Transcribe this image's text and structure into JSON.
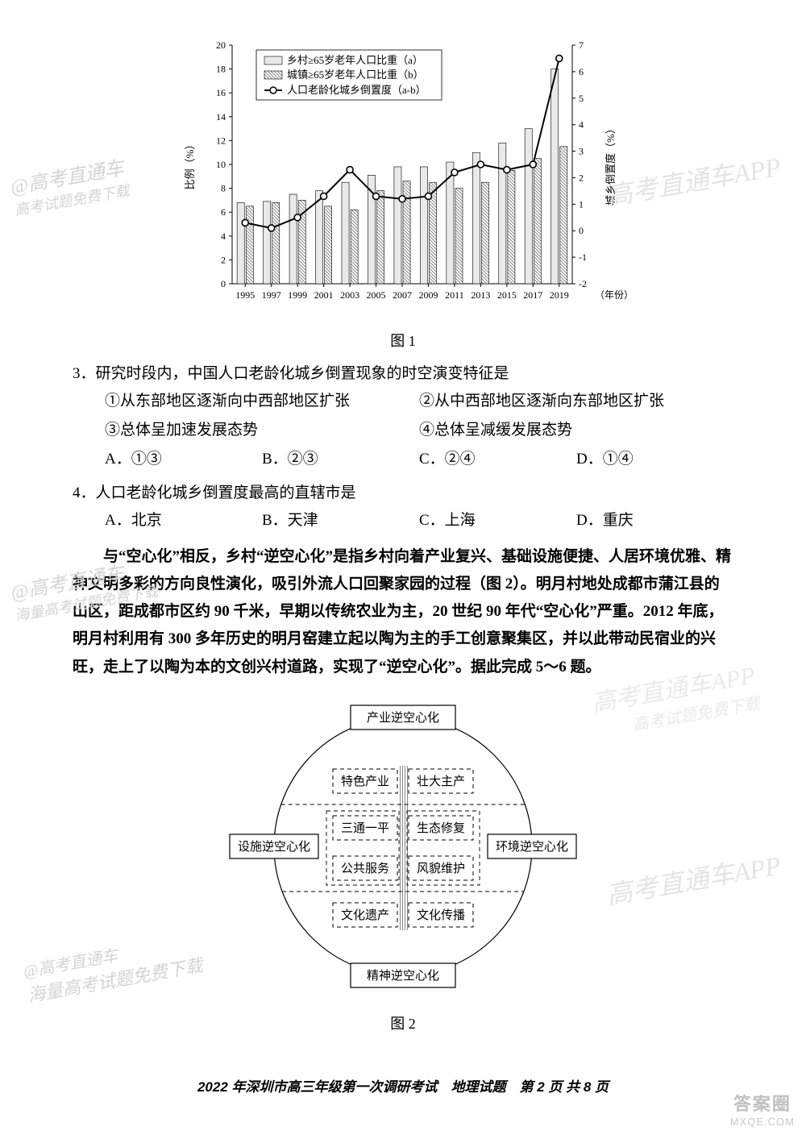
{
  "chart1": {
    "type": "bar+line",
    "legend": {
      "a": "乡村≥65岁老年人口比重（a）",
      "b": "城镇≥65岁老年人口比重（b）",
      "line": "人口老龄化城乡倒置度（a-b）"
    },
    "y_left_label": "比例（%）",
    "y_right_label": "城乡倒置度（%）",
    "y_left": {
      "min": 0,
      "max": 20,
      "step": 2
    },
    "y_right": {
      "min": -2,
      "max": 7,
      "step": 1
    },
    "x_label": "（年份）",
    "years": [
      1995,
      1997,
      1999,
      2001,
      2003,
      2005,
      2007,
      2009,
      2011,
      2013,
      2015,
      2017,
      2019
    ],
    "bar_a": [
      6.8,
      6.9,
      7.5,
      7.8,
      8.5,
      9.1,
      9.8,
      9.8,
      10.2,
      11.0,
      11.8,
      13.0,
      18.0
    ],
    "bar_b": [
      6.5,
      6.8,
      7.0,
      6.5,
      6.2,
      7.8,
      8.6,
      8.5,
      8.0,
      8.5,
      9.5,
      10.5,
      11.5
    ],
    "line_vals": [
      0.3,
      0.1,
      0.5,
      1.3,
      2.3,
      1.3,
      1.2,
      1.3,
      2.2,
      2.5,
      2.3,
      2.5,
      6.5
    ],
    "bar_a_color": "#e9e9e9",
    "bar_b_color": "#a8a8a8",
    "line_color": "#000000",
    "grid_color": "#000000",
    "bg": "#ffffff",
    "caption": "图 1"
  },
  "q3": {
    "stem": "3．研究时段内，中国人口老龄化城乡倒置现象的时空演变特征是",
    "s1": "①从东部地区逐渐向中西部地区扩张",
    "s2": "②从中西部地区逐渐向东部地区扩张",
    "s3": "③总体呈加速发展态势",
    "s4": "④总体呈减缓发展态势",
    "A": "A．①③",
    "B": "B．②③",
    "C": "C．②④",
    "D": "D．①④"
  },
  "q4": {
    "stem": "4．人口老龄化城乡倒置度最高的直辖市是",
    "A": "A．北京",
    "B": "B．天津",
    "C": "C．上海",
    "D": "D．重庆"
  },
  "passage": "与“空心化”相反，乡村“逆空心化”是指乡村向着产业复兴、基础设施便捷、人居环境优雅、精神文明多彩的方向良性演化，吸引外流人口回聚家园的过程（图 2）。明月村地处成都市蒲江县的山区，距成都市区约 90 千米，早期以传统农业为主，20 世纪 90 年代“空心化”严重。2012 年底，明月村利用有 300 多年历史的明月窑建立起以陶为主的手工创意聚集区，并以此带动民宿业的兴旺，走上了以陶为本的文创兴村道路，实现了“逆空心化”。据此完成 5～6 题。",
  "diagram2": {
    "type": "flowchart",
    "nodes": {
      "top": "产业逆空心化",
      "left": "设施逆空心化",
      "right": "环境逆空心化",
      "bottom": "精神逆空心化",
      "row1": [
        "特色产业",
        "壮大主产"
      ],
      "row2": [
        "三通一平",
        "生态修复"
      ],
      "row3": [
        "公共服务",
        "风貌维护"
      ],
      "row4": [
        "文化遗产",
        "文化传播"
      ]
    },
    "caption": "图 2",
    "solid_border": "#000000",
    "dashed_border": "#000000",
    "hatch_color": "#a0a0a0"
  },
  "footer": "2022 年深圳市高三年级第一次调研考试　地理试题　第 2 页 共 8 页",
  "watermarks": {
    "ztc_full": "高考直通车APP",
    "ztc_short": "@高考直通车",
    "hl": "海量高考试题免费下载",
    "hl2": "高考试题免费下载"
  },
  "badge": {
    "l1": "答案圈",
    "l2": "MXQE.COM"
  }
}
